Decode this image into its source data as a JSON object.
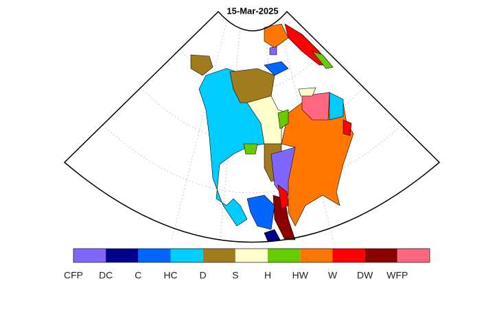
{
  "title": "15-Mar-2025",
  "legend": {
    "items": [
      {
        "label": "CFP",
        "color": "#8066ff"
      },
      {
        "label": "DC",
        "color": "#00008b"
      },
      {
        "label": "C",
        "color": "#0066ff"
      },
      {
        "label": "HC",
        "color": "#00ccff"
      },
      {
        "label": "D",
        "color": "#a07c1e"
      },
      {
        "label": "S",
        "color": "#ffffcc"
      },
      {
        "label": "H",
        "color": "#66cc00"
      },
      {
        "label": "HW",
        "color": "#ff7700"
      },
      {
        "label": "W",
        "color": "#ff0000"
      },
      {
        "label": "DW",
        "color": "#8b0000"
      },
      {
        "label": "WFP",
        "color": "#ff6680"
      }
    ]
  }
}
